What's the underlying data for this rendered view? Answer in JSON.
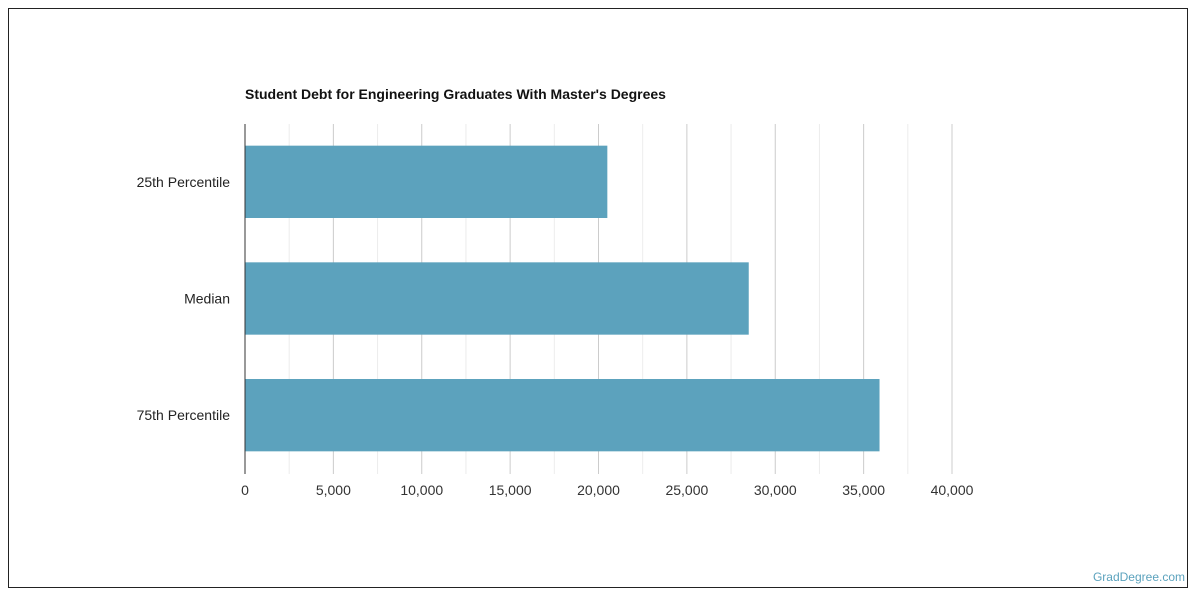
{
  "chart_data": {
    "type": "bar",
    "orientation": "horizontal",
    "title": "Student Debt for Engineering Graduates With Master's Degrees",
    "xlabel": "",
    "ylabel": "",
    "categories": [
      "25th Percentile",
      "Median",
      "75th Percentile"
    ],
    "values": [
      20500,
      28500,
      35900
    ],
    "xlim": [
      0,
      40000
    ],
    "x_ticks": [
      "0",
      "5,000",
      "10,000",
      "15,000",
      "20,000",
      "25,000",
      "30,000",
      "35,000",
      "40,000"
    ],
    "grid": true,
    "legend": "none",
    "bar_color": "#5ca2bd"
  },
  "watermark": "GradDegree.com"
}
